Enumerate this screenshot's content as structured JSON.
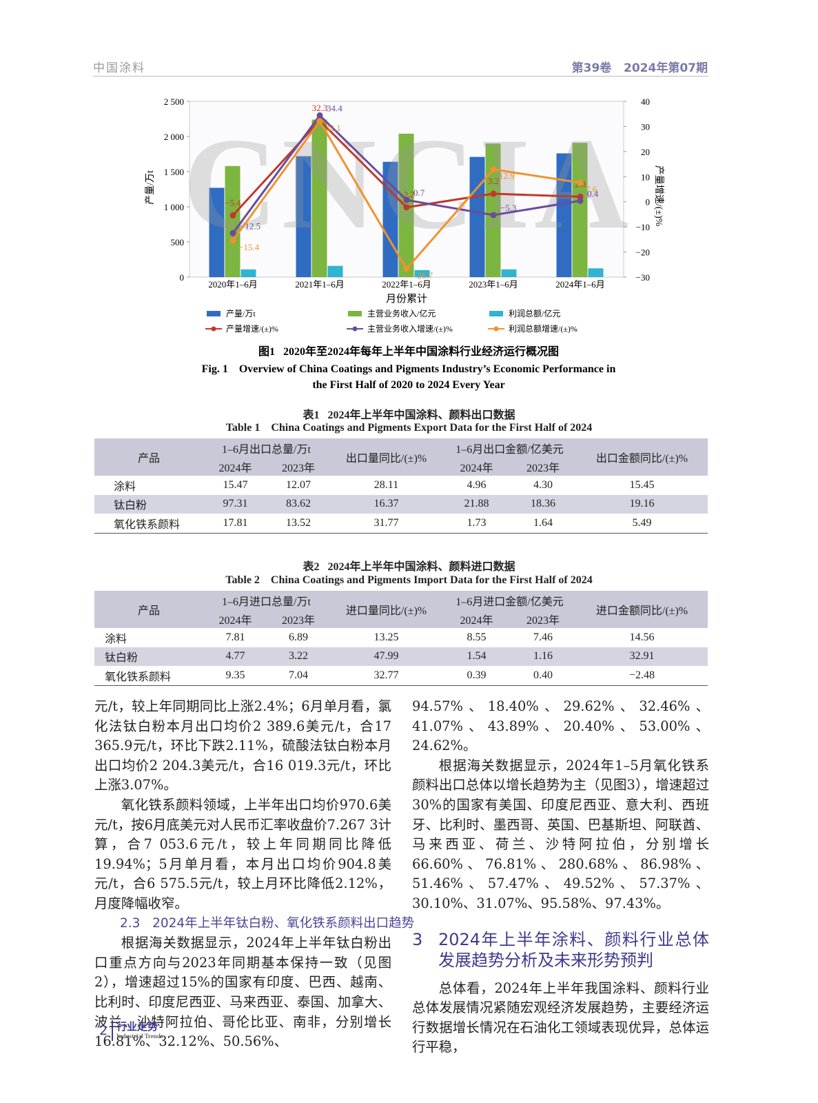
{
  "header": {
    "journal": "中国涂料",
    "issue": "第39卷   2024年第07期"
  },
  "chart_data": {
    "type": "bar",
    "watermark": "CNCIA",
    "categories": [
      "2020年1–6月",
      "2021年1–6月",
      "2022年1–6月",
      "2023年1–6月",
      "2024年1–6月"
    ],
    "x_label": "月份累计",
    "y_label": "产量/万t",
    "y2_label": "产量增速/(±)%",
    "ylim": [
      0,
      2500
    ],
    "yticks": [
      0,
      500,
      {
        "value": 1000,
        "label": "1 000"
      },
      {
        "value": 1500,
        "label": "1 500"
      },
      {
        "value": 2000,
        "label": "2 000"
      },
      {
        "value": 2500,
        "label": "2 500"
      }
    ],
    "y2lim": [
      -30,
      40
    ],
    "y2ticks": [
      {
        "value": -30,
        "label": "−30"
      },
      {
        "value": -20,
        "label": "−20"
      },
      {
        "value": -10,
        "label": "−10"
      },
      0,
      10,
      20,
      30,
      40
    ],
    "series": [
      {
        "name": "产量/万t",
        "type": "bar",
        "color": "#2f6cc2",
        "values": [
          1270,
          1720,
          1640,
          1710,
          1760
        ]
      },
      {
        "name": "主营业务收入/亿元",
        "type": "bar",
        "color": "#7cb53f",
        "values": [
          1580,
          2240,
          2040,
          1900,
          1910
        ]
      },
      {
        "name": "利润总额/亿元",
        "type": "bar",
        "color": "#30b4d2",
        "values": [
          110,
          160,
          100,
          110,
          125
        ]
      },
      {
        "name": "产量增速/(±)%",
        "type": "line",
        "axis": "y2",
        "color": "#c0392b",
        "values": [
          -5.4,
          32.3,
          -2.2,
          3.2,
          2.0
        ],
        "value_labels": [
          "−5.4",
          "32.3",
          "−2.2",
          "3.2",
          "2.0"
        ]
      },
      {
        "name": "主营业务收入增速/(±)%",
        "type": "line",
        "axis": "y2",
        "color": "#6a4c9c",
        "values": [
          -12.5,
          34.4,
          0.7,
          -5.3,
          0.4
        ],
        "value_labels": [
          "−12.5",
          "34.4",
          "0.7",
          "−5.3",
          "0.4"
        ]
      },
      {
        "name": "利润总额增速/(±)%",
        "type": "line",
        "axis": "y2",
        "color": "#f0922e",
        "values": [
          -15.4,
          32.1,
          -26.7,
          12.9,
          7.6
        ],
        "value_labels": [
          "−15.4",
          "32.1",
          "−26.7",
          "12.9",
          "7.6"
        ]
      }
    ],
    "caption_cn": "图1   2020年至2024年每年上半年中国涂料行业经济运行概况图",
    "caption_en": [
      "Fig. 1    Overview of China Coatings and Pigments Industry’s Economic Performance in",
      "the First Half of 2020 to 2024 Every Year"
    ]
  },
  "table1": {
    "caption_cn": "表1   2024年上半年中国涂料、颜料出口数据",
    "caption_en": "Table 1    China Coatings and Pigments Export Data for the First Half of 2024",
    "header": [
      "产品",
      "1–6月出口总量/万t",
      "出口量同比/(±)%",
      "1–6月出口金额/亿美元",
      "出口金额同比/(±)%",
      "2024年",
      "2023年",
      "2024年",
      "2023年"
    ],
    "rows": [
      [
        "涂料",
        "15.47",
        "12.07",
        "28.11",
        "4.96",
        "4.30",
        "15.45"
      ],
      [
        "钛白粉",
        "97.31",
        "83.62",
        "16.37",
        "21.88",
        "18.36",
        "19.16"
      ],
      [
        "氧化铁系颜料",
        "17.81",
        "13.52",
        "31.77",
        "1.73",
        "1.64",
        "5.49"
      ]
    ]
  },
  "table2": {
    "caption_cn": "表2   2024年上半年中国涂料、颜料进口数据",
    "caption_en": "Table 2    China Coatings and Pigments Import Data for the First Half of 2024",
    "header": [
      "产品",
      "1–6月进口总量/万t",
      "进口量同比/(±)%",
      "1–6月进口金额/亿美元",
      "进口金额同比/(±)%",
      "2024年",
      "2023年",
      "2024年",
      "2023年"
    ],
    "rows": [
      [
        "涂料",
        "7.81",
        "6.89",
        "13.25",
        "8.55",
        "7.46",
        "14.56"
      ],
      [
        "钛白粉",
        "4.77",
        "3.22",
        "47.99",
        "1.54",
        "1.16",
        "32.91"
      ],
      [
        "氧化铁系颜料",
        "9.35",
        "7.04",
        "32.77",
        "0.39",
        "0.40",
        "−2.48"
      ]
    ]
  },
  "body": {
    "left": [
      "元/t，较上年同期同比上涨2.4%；6月单月看，氯化法钛白粉本月出口均价2 389.6美元/t，合17 365.9元/t，环比下跌2.11%，硫酸法钛白粉本月出口均价2 204.3美元/t，合16 019.3元/t，环比上涨3.07%。",
      "氧化铁系颜料领域，上半年出口均价970.6美元/t，按6月底美元对人民币汇率收盘价7.267 3计算，合7 053.6元/t，较上年同期同比降低19.94%；5月单月看，本月出口均价904.8美元/t，合6 575.5元/t，较上月环比降低2.12%，月度降幅收窄。"
    ],
    "section_2_3": "2.3   2024年上半年钛白粉、氧化铁系颜料出口趋势",
    "left_after": "根据海关数据显示，2024年上半年钛白粉出口重点方向与2023年同期基本保持一致（见图2），增速超过15%的国家有印度、巴西、越南、比利时、印度尼西亚、马来西亚、泰国、加拿大、波兰、沙特阿拉伯、哥伦比亚、南非，分别增长16.81%、32.12%、50.56%、",
    "right": [
      "94.57%、18.40%、29.62%、32.46%、41.07%、43.89%、20.40%、53.00%、24.62%。",
      "根据海关数据显示，2024年1–5月氧化铁系颜料出口总体以增长趋势为主（见图3），增速超过30%的国家有美国、印度尼西亚、意大利、西班牙、比利时、墨西哥、英国、巴基斯坦、阿联酋、马来西亚、荷兰、沙特阿拉伯，分别增长66.60%、76.81%、280.68%、86.98%、51.46%、57.47%、49.52%、57.37%、30.10%、31.07%、95.58%、97.43%。"
    ],
    "section_3_number": "3",
    "section_3_title": "2024年上半年涂料、颜料行业总体发展趋势分析及未来形势预判",
    "right_after": "总体看，2024年上半年我国涂料、颜料行业总体发展情况紧随宏观经济发展趋势，主要经济运行数据增长情况在石油化工领域表现优异，总体运行平稳，"
  },
  "footer": {
    "page": "2",
    "column": "行业走势",
    "column_en": "Industrial Trends"
  }
}
